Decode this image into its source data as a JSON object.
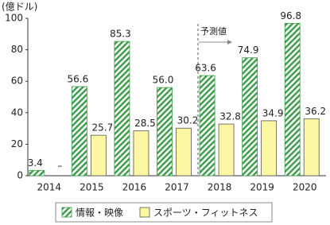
{
  "chart_data": {
    "type": "bar",
    "y_label": "(億ドル)",
    "annotation": "予測値",
    "categories": [
      "2014",
      "2015",
      "2016",
      "2017",
      "2018",
      "2019",
      "2020"
    ],
    "series": [
      {
        "name": "情報・映像",
        "color": "#3a9b48",
        "pattern": "hatch",
        "values": [
          3.4,
          56.6,
          85.3,
          56,
          63.6,
          74.9,
          96.8
        ],
        "value_labels": [
          "3.4",
          "56.6",
          "85.3",
          "56.0",
          "63.6",
          "74.9",
          "96.8"
        ]
      },
      {
        "name": "スポーツ・フィットネス",
        "color": "#fdf6a3",
        "values": [
          null,
          25.7,
          28.5,
          30.2,
          32.8,
          34.9,
          36.2
        ],
        "value_labels": [
          "–",
          "25.7",
          "28.5",
          "30.2",
          "32.8",
          "34.9",
          "36.2"
        ]
      }
    ],
    "ylim": [
      0,
      100
    ],
    "yticks": [
      0,
      20,
      40,
      60,
      80,
      100
    ],
    "grid": false
  }
}
